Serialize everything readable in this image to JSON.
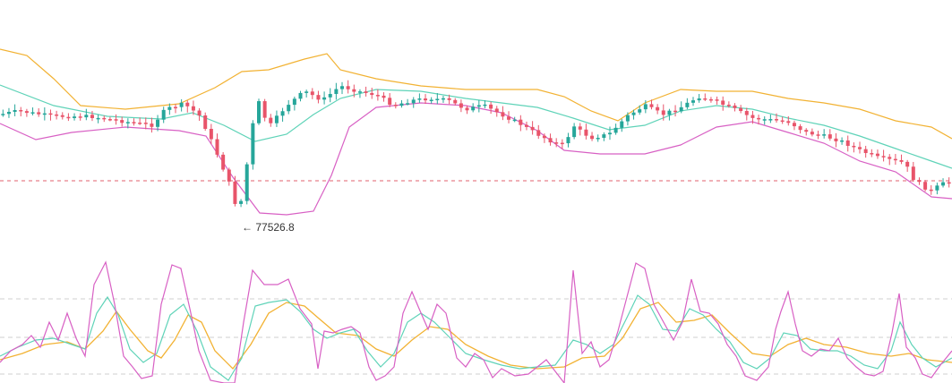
{
  "chart_data": {
    "type": "candlestick",
    "panels": [
      "price",
      "oscillator"
    ],
    "price": {
      "annotations": {
        "low_marker": {
          "text": "77526.8",
          "value": 77526.8,
          "candle_index": 51
        }
      },
      "reference_line": {
        "style": "dashed",
        "color": "#e0606c"
      },
      "colors": {
        "up": "#26a69a",
        "down": "#e8546a",
        "upper_band": "#f2b233",
        "middle_band": "#5fd3b8",
        "lower_band": "#d860c4"
      }
    },
    "oscillator": {
      "grid": "dashed",
      "colors": {
        "fast": "#d860c4",
        "mid": "#5fd3b8",
        "slow": "#f2b233"
      }
    }
  }
}
